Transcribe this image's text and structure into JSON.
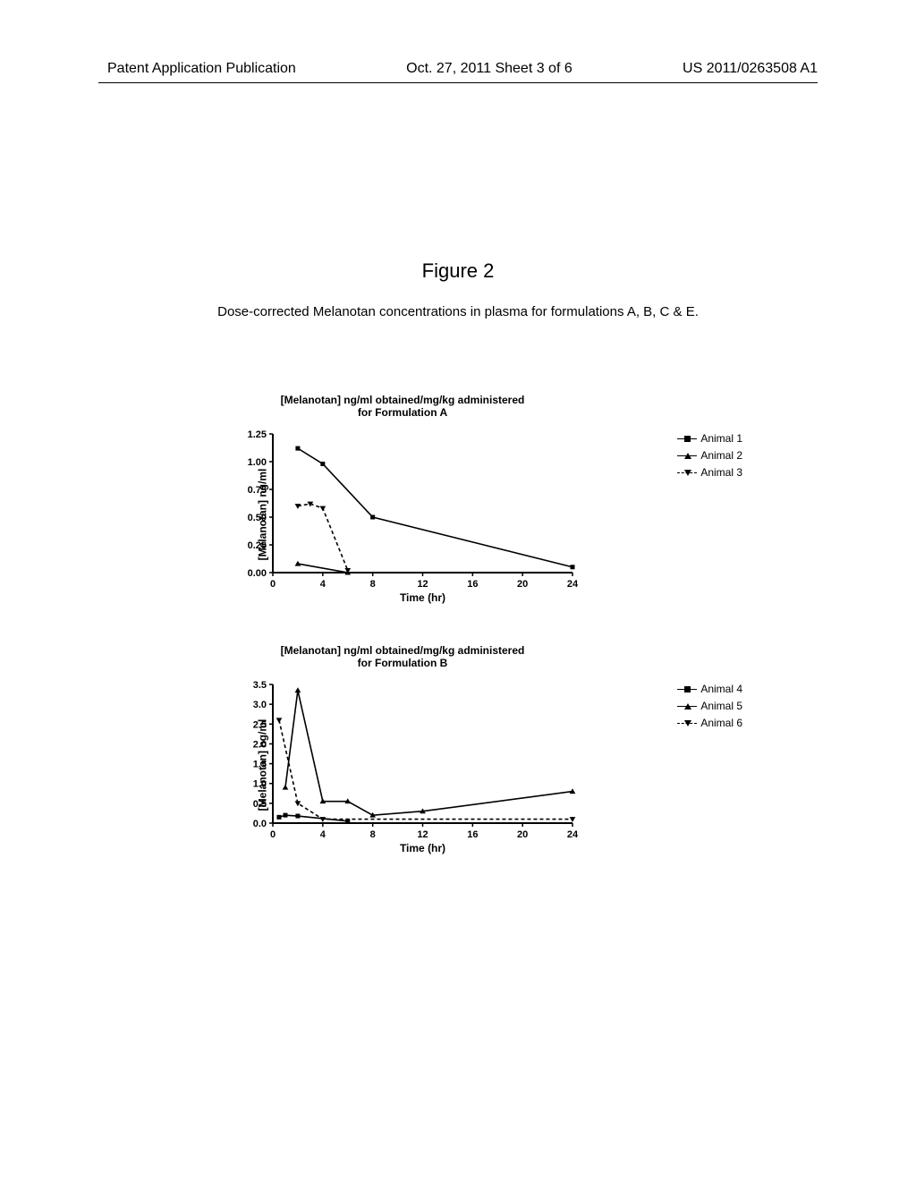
{
  "header": {
    "left": "Patent Application Publication",
    "center": "Oct. 27, 2011  Sheet 3 of 6",
    "right": "US 2011/0263508 A1"
  },
  "figure": {
    "title": "Figure 2",
    "caption": "Dose-corrected Melanotan concentrations in plasma for formulations A, B, C & E."
  },
  "chartA": {
    "title_line1": "[Melanotan] ng/ml obtained/mg/kg administered",
    "title_line2": "for Formulation A",
    "ylabel": "[Melanotan] ng/ml",
    "xlabel": "Time (hr)",
    "xlim": [
      0,
      24
    ],
    "ylim": [
      0,
      1.25
    ],
    "xticks": [
      0,
      4,
      8,
      12,
      16,
      20,
      24
    ],
    "yticks": [
      0.0,
      0.25,
      0.5,
      0.75,
      1.0,
      1.25
    ],
    "ytick_labels": [
      "0.00",
      "0.25",
      "0.50",
      "0.75",
      "1.00",
      "1.25"
    ],
    "legend": [
      {
        "marker": "square",
        "dash": false,
        "label": "Animal 1"
      },
      {
        "marker": "triangle",
        "dash": false,
        "label": "Animal 2"
      },
      {
        "marker": "dtriangle",
        "dash": true,
        "label": "Animal 3"
      }
    ],
    "series": {
      "animal1": [
        {
          "x": 2,
          "y": 1.12
        },
        {
          "x": 4,
          "y": 0.98
        },
        {
          "x": 8,
          "y": 0.5
        },
        {
          "x": 24,
          "y": 0.05
        }
      ],
      "animal2": [
        {
          "x": 2,
          "y": 0.08
        },
        {
          "x": 6,
          "y": 0.0
        }
      ],
      "animal3": [
        {
          "x": 2,
          "y": 0.6
        },
        {
          "x": 3,
          "y": 0.62
        },
        {
          "x": 4,
          "y": 0.58
        },
        {
          "x": 6,
          "y": 0.02
        }
      ]
    },
    "colors": {
      "axis": "#000000",
      "series": "#000000",
      "background": "#ffffff"
    },
    "line_width": 1.6,
    "marker_size": 5
  },
  "chartB": {
    "title_line1": "[Melanotan] ng/ml obtained/mg/kg administered",
    "title_line2": "for Formulation B",
    "ylabel": "[Melanotan] ng/ml",
    "xlabel": "Time (hr)",
    "xlim": [
      0,
      24
    ],
    "ylim": [
      0,
      3.5
    ],
    "xticks": [
      0,
      4,
      8,
      12,
      16,
      20,
      24
    ],
    "yticks": [
      0.0,
      0.5,
      1.0,
      1.5,
      2.0,
      2.5,
      3.0,
      3.5
    ],
    "ytick_labels": [
      "0.0",
      "0.5",
      "1.0",
      "1.5",
      "2.0",
      "2.5",
      "3.0",
      "3.5"
    ],
    "legend": [
      {
        "marker": "square",
        "dash": false,
        "label": "Animal 4"
      },
      {
        "marker": "triangle",
        "dash": false,
        "label": "Animal 5"
      },
      {
        "marker": "dtriangle",
        "dash": true,
        "label": "Animal 6"
      }
    ],
    "series": {
      "animal4": [
        {
          "x": 0.5,
          "y": 0.15
        },
        {
          "x": 1,
          "y": 0.2
        },
        {
          "x": 2,
          "y": 0.18
        },
        {
          "x": 6,
          "y": 0.05
        }
      ],
      "animal5": [
        {
          "x": 1,
          "y": 0.9
        },
        {
          "x": 2,
          "y": 3.35
        },
        {
          "x": 4,
          "y": 0.55
        },
        {
          "x": 6,
          "y": 0.55
        },
        {
          "x": 8,
          "y": 0.2
        },
        {
          "x": 12,
          "y": 0.3
        },
        {
          "x": 24,
          "y": 0.8
        }
      ],
      "animal6": [
        {
          "x": 0.5,
          "y": 2.6
        },
        {
          "x": 2,
          "y": 0.5
        },
        {
          "x": 4,
          "y": 0.1
        },
        {
          "x": 24,
          "y": 0.1
        }
      ]
    },
    "colors": {
      "axis": "#000000",
      "series": "#000000",
      "background": "#ffffff"
    },
    "line_width": 1.6,
    "marker_size": 5
  }
}
